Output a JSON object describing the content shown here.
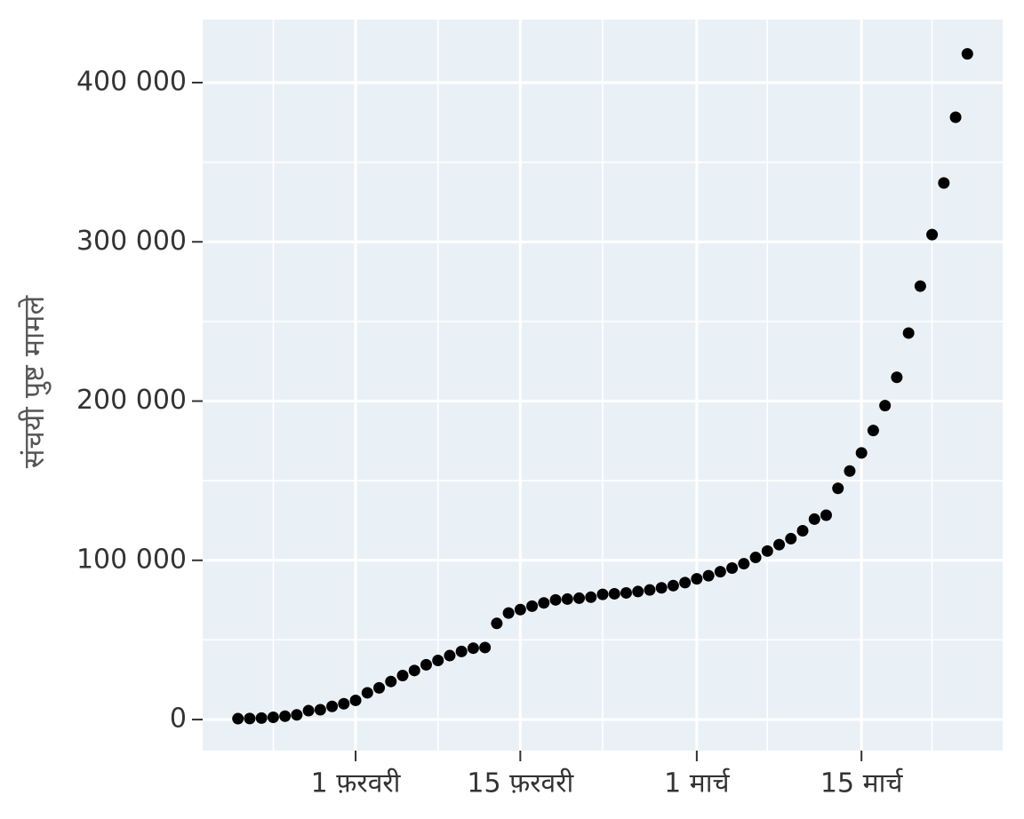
{
  "chart_data": {
    "type": "scatter",
    "y_label": "संचयी पुष्ट मामले",
    "x": [
      "01-22",
      "01-23",
      "01-24",
      "01-25",
      "01-26",
      "01-27",
      "01-28",
      "01-29",
      "01-30",
      "01-31",
      "02-01",
      "02-02",
      "02-03",
      "02-04",
      "02-05",
      "02-06",
      "02-07",
      "02-08",
      "02-09",
      "02-10",
      "02-11",
      "02-12",
      "02-13",
      "02-14",
      "02-15",
      "02-16",
      "02-17",
      "02-18",
      "02-19",
      "02-20",
      "02-21",
      "02-22",
      "02-23",
      "02-24",
      "02-25",
      "02-26",
      "02-27",
      "02-28",
      "02-29",
      "03-01",
      "03-02",
      "03-03",
      "03-04",
      "03-05",
      "03-06",
      "03-07",
      "03-08",
      "03-09",
      "03-10",
      "03-11",
      "03-12",
      "03-13",
      "03-14",
      "03-15",
      "03-16",
      "03-17",
      "03-18",
      "03-19",
      "03-20",
      "03-21",
      "03-22",
      "03-23",
      "03-24"
    ],
    "values": [
      555,
      654,
      941,
      1434,
      2118,
      2927,
      5578,
      6166,
      8234,
      9927,
      12038,
      16787,
      19887,
      23898,
      27643,
      30802,
      34395,
      37129,
      40160,
      42769,
      44811,
      45229,
      60381,
      66909,
      69052,
      71235,
      73270,
      75152,
      75652,
      76212,
      76841,
      78602,
      78982,
      79546,
      80399,
      81376,
      82736,
      84120,
      86011,
      88369,
      90306,
      92840,
      95120,
      97886,
      101800,
      105836,
      109835,
      113582,
      118582,
      125865,
      128343,
      145193,
      156097,
      167449,
      181546,
      197168,
      214915,
      242713,
      272167,
      304528,
      336953,
      378235,
      418045
    ],
    "color": "#000000",
    "xlim": [
      "01-19",
      "03-27"
    ],
    "xticks": [
      {
        "value": "02-01",
        "label": "1 फ़रवरी"
      },
      {
        "value": "02-15",
        "label": "15 फ़रवरी"
      },
      {
        "value": "03-01",
        "label": "1 मार्च"
      },
      {
        "value": "03-15",
        "label": "15 मार्च"
      }
    ],
    "ylim": [
      -19500,
      439600
    ],
    "yticks": [
      0,
      {
        "value": 100000,
        "label": "100 000"
      },
      {
        "value": 200000,
        "label": "200 000"
      },
      {
        "value": 300000,
        "label": "300 000"
      },
      {
        "value": 400000,
        "label": "400 000"
      }
    ],
    "grid": true
  }
}
